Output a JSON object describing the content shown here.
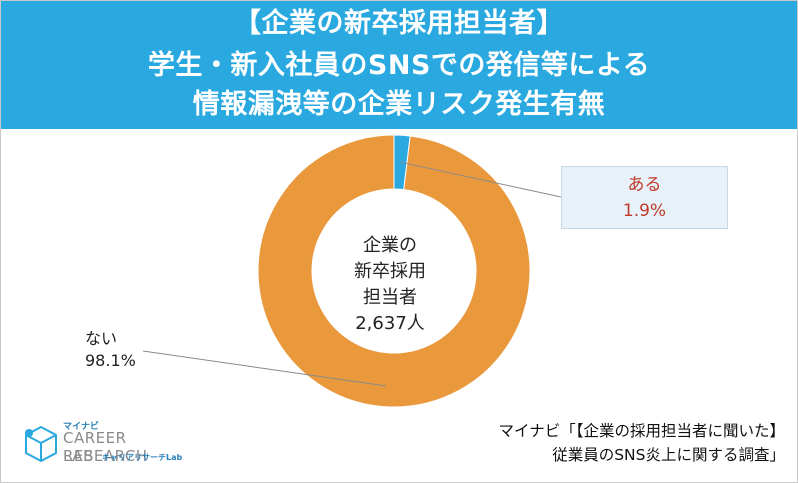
{
  "header": {
    "line1": "【企業の新卒採用担当者】",
    "line2": "学生・新入社員のSNSでの発信等による",
    "line3": "情報漏洩等の企業リスク発生有無"
  },
  "center_label": [
    "企業の",
    "新卒採用",
    "担当者",
    "2,637人"
  ],
  "colors": {
    "header": "#29a9e0",
    "aru": "#29a9e0",
    "nai": "#e9993c",
    "callout_text": "#c0392b",
    "callout_bg": "#e7f2f8"
  },
  "chart_data": {
    "type": "pie",
    "donut": true,
    "slices": [
      {
        "label": "ある",
        "value": 1.9,
        "display": "1.9%"
      },
      {
        "label": "ない",
        "value": 98.1,
        "display": "98.1%"
      }
    ]
  },
  "logo": {
    "small": "マイナビ",
    "brand_line1": "CAREER RESEARCH",
    "brand_line2": "LAB",
    "sub": "キャリアリサーチLab"
  },
  "source": {
    "line1": "マイナビ「【企業の採用担当者に聞いた】",
    "line2": "従業員のSNS炎上に関する調査」"
  }
}
